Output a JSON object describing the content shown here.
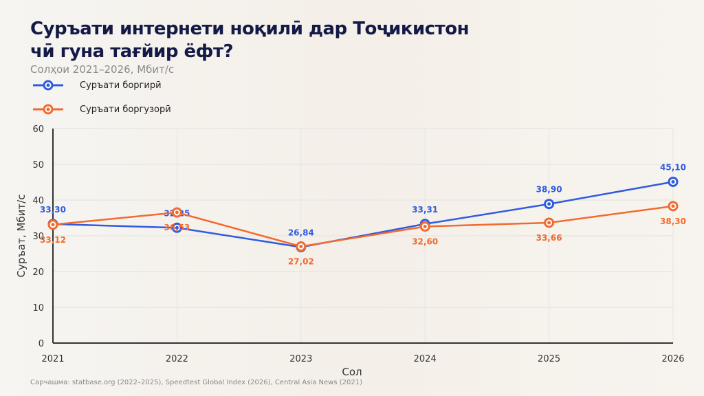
{
  "title_line1": "Суръати интернети ноқилӣ дар Тоҷикистон",
  "title_line2": "чӣ гуна тағйир ёфт?",
  "subtitle": "Солҳои 2021–2026, Мбит/с",
  "source": "Сарчашма: statbase.org (2022–2025), Speedtest Global Index (2026), Central Asia News (2021)",
  "chart_data": {
    "type": "line",
    "x": [
      "2021",
      "2022",
      "2023",
      "2024",
      "2025",
      "2026"
    ],
    "series": [
      {
        "name": "Суръати боргирӣ",
        "color": "#2f5be0",
        "values": [
          33.3,
          32.25,
          26.84,
          33.31,
          38.9,
          45.1
        ],
        "labels": [
          "33,30",
          "32,25",
          "26,84",
          "33,31",
          "38,90",
          "45,10"
        ],
        "label_pos": "above"
      },
      {
        "name": "Суръати боргузорӣ",
        "color": "#f26a2e",
        "values": [
          33.12,
          36.53,
          27.02,
          32.6,
          33.66,
          38.3
        ],
        "labels": [
          "33,12",
          "36,53",
          "27,02",
          "32,60",
          "33,66",
          "38,30"
        ],
        "label_pos": "below"
      }
    ],
    "xlabel": "Сол",
    "ylabel": "Суръат, Мбит/с",
    "ylim": [
      0,
      60
    ],
    "yticks": [
      "0",
      "10",
      "20",
      "30",
      "40",
      "50",
      "60"
    ],
    "grid": true,
    "legend": "top-left"
  }
}
